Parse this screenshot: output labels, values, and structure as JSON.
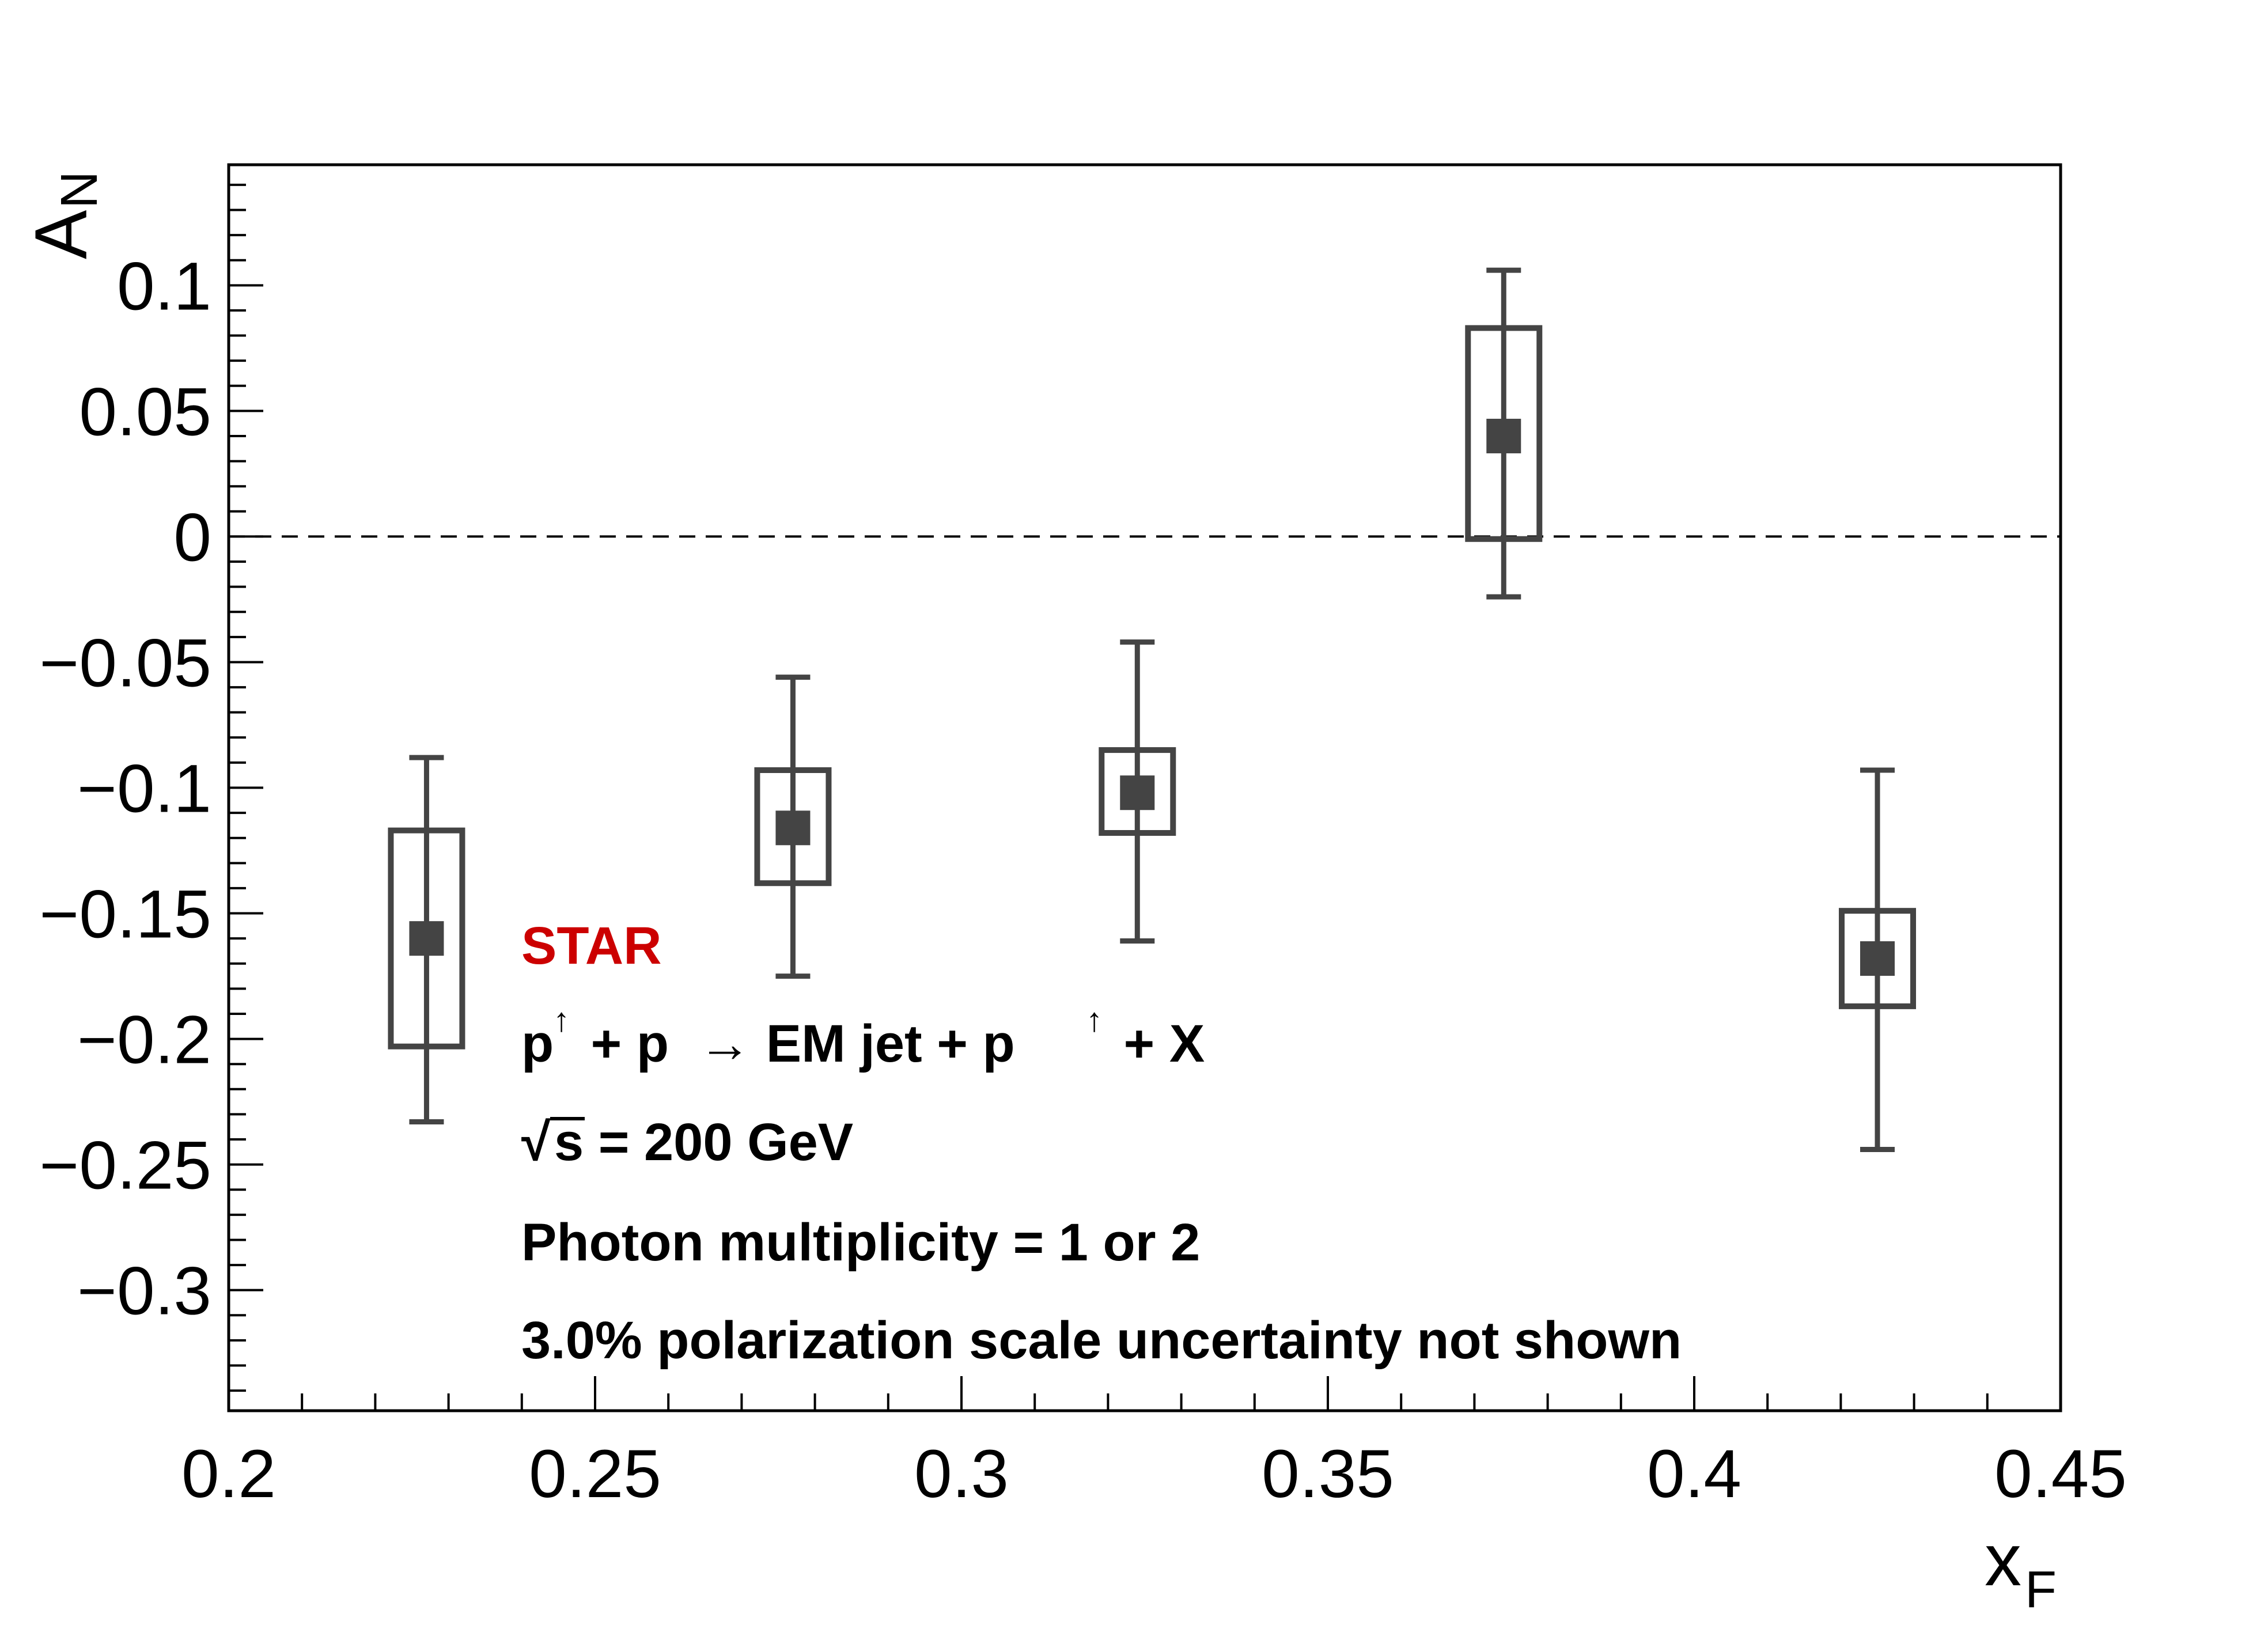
{
  "chart_data": {
    "type": "scatter",
    "xlabel": "x",
    "xlabel_sub": "F",
    "ylabel": "A",
    "ylabel_sub": "N",
    "xlim": [
      0.2,
      0.45
    ],
    "ylim": [
      -0.348,
      0.148
    ],
    "x_ticks": [
      "0.2",
      "0.25",
      "0.3",
      "0.35",
      "0.4",
      "0.45"
    ],
    "x_tick_values": [
      0.2,
      0.25,
      0.3,
      0.35,
      0.4,
      0.45
    ],
    "y_ticks": [
      "0.1",
      "0.05",
      "0",
      "−0.05",
      "−0.1",
      "−0.15",
      "−0.2",
      "−0.25",
      "−0.3"
    ],
    "y_tick_values": [
      0.1,
      0.05,
      0,
      -0.05,
      -0.1,
      -0.15,
      -0.2,
      -0.25,
      -0.3
    ],
    "reference_line": {
      "y": 0,
      "style": "dashed"
    },
    "grid": false,
    "marker_color": "#444444",
    "points": [
      {
        "x": 0.227,
        "y": -0.16,
        "stat_low": -0.233,
        "stat_high": -0.088,
        "sys_low": -0.203,
        "sys_high": -0.117
      },
      {
        "x": 0.277,
        "y": -0.116,
        "stat_low": -0.175,
        "stat_high": -0.056,
        "sys_low": -0.138,
        "sys_high": -0.093
      },
      {
        "x": 0.324,
        "y": -0.102,
        "stat_low": -0.161,
        "stat_high": -0.042,
        "sys_low": -0.118,
        "sys_high": -0.085
      },
      {
        "x": 0.374,
        "y": 0.04,
        "stat_low": -0.024,
        "stat_high": 0.106,
        "sys_low": -0.001,
        "sys_high": 0.083
      },
      {
        "x": 0.425,
        "y": -0.168,
        "stat_low": -0.244,
        "stat_high": -0.093,
        "sys_low": -0.187,
        "sys_high": -0.149
      }
    ]
  },
  "annotations": {
    "experiment": "STAR",
    "experiment_color": "#cc0000",
    "reaction_part1": "p",
    "reaction_sup1": "↑",
    "reaction_part2": " + p  → EM jet + p",
    "reaction_sup2": "↑",
    "reaction_part3": " + X",
    "energy_root": "√",
    "energy_text": "s = 200 GeV",
    "multiplicity": "Photon multiplicity = 1 or 2",
    "uncertainty_note": "3.0% polarization scale uncertainty not shown"
  }
}
